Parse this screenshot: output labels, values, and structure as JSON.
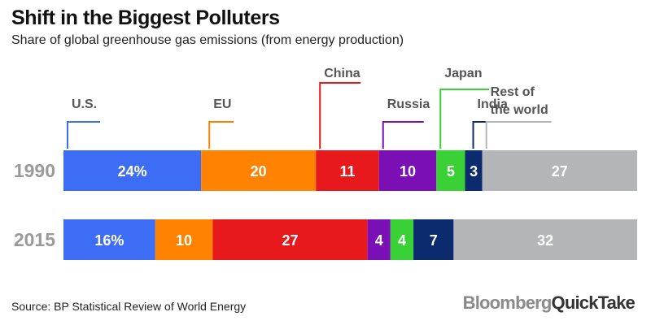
{
  "title": "Shift in the Biggest Polluters",
  "subtitle": "Share of global greenhouse gas emissions (from energy production)",
  "source": "Source: BP Statistical Review of World Energy",
  "brand": {
    "part1": "Bloomberg",
    "part2": "QuickTake"
  },
  "chart_data": {
    "type": "bar",
    "orientation": "horizontal-stacked",
    "categories": [
      "1990",
      "2015"
    ],
    "unit": "%",
    "series": [
      {
        "name": "U.S.",
        "color": "#3d6df5",
        "values": [
          24,
          16
        ],
        "labels": [
          "24%",
          "16%"
        ]
      },
      {
        "name": "EU",
        "color": "#ff8200",
        "values": [
          20,
          10
        ],
        "labels": [
          "20",
          "10"
        ]
      },
      {
        "name": "China",
        "color": "#e8191d",
        "values": [
          11,
          27
        ],
        "labels": [
          "11",
          "27"
        ]
      },
      {
        "name": "Russia",
        "color": "#7a0fb5",
        "values": [
          10,
          4
        ],
        "labels": [
          "10",
          "4"
        ]
      },
      {
        "name": "Japan",
        "color": "#3ad136",
        "values": [
          5,
          4
        ],
        "labels": [
          "5",
          "4"
        ]
      },
      {
        "name": "India",
        "color": "#0b2b6e",
        "values": [
          3,
          7
        ],
        "labels": [
          "3",
          "7"
        ]
      },
      {
        "name": "Rest of the world",
        "label_lines": [
          "Rest of",
          "the world"
        ],
        "color": "#b3b5b8",
        "values": [
          27,
          32
        ],
        "labels": [
          "27",
          "32"
        ]
      }
    ],
    "total": 100,
    "legend": "callouts-above"
  }
}
